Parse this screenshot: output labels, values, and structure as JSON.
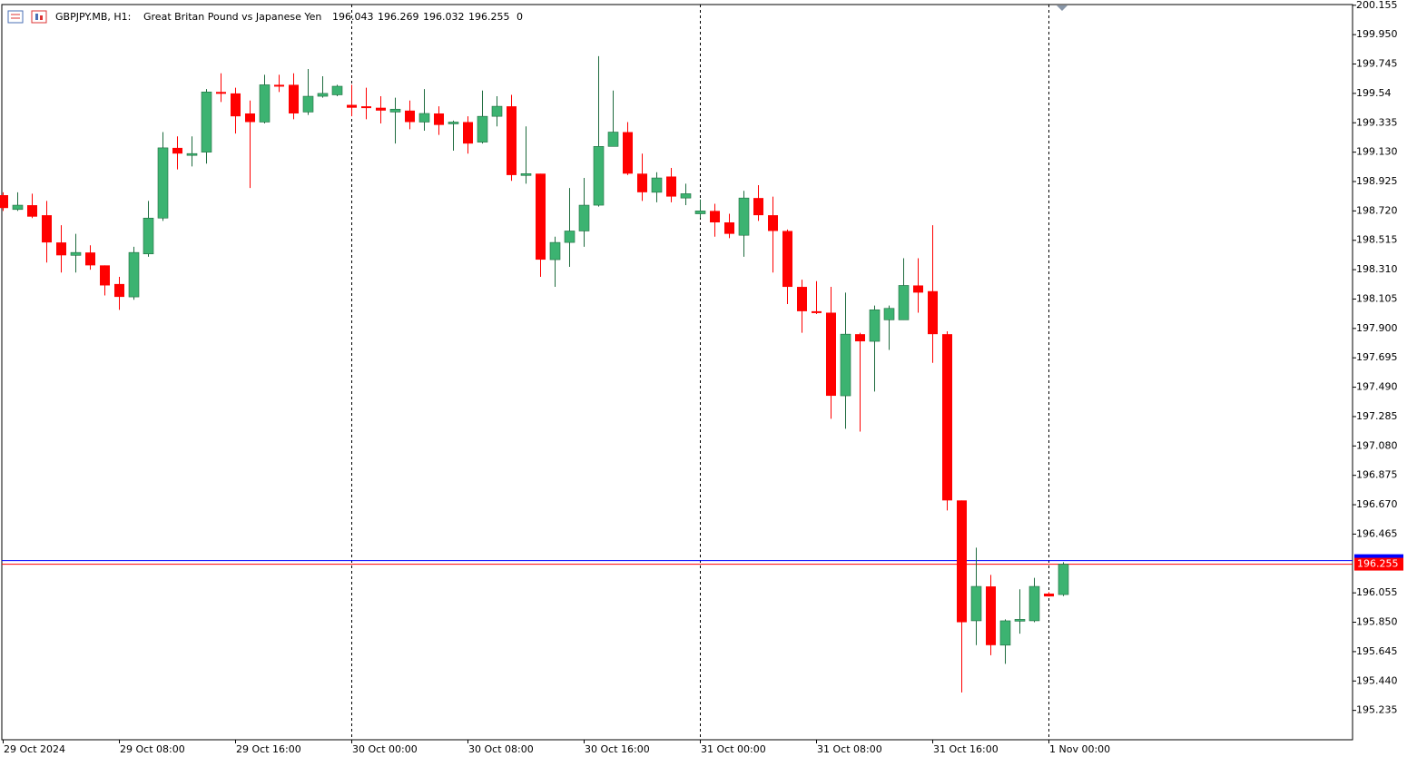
{
  "chart_data": {
    "type": "candlestick",
    "title": "GBPJPY.MB, H1:",
    "subtitle": "Great Britan Pound vs Japanese Yen",
    "header_value": 0,
    "categories": [
      "29 Oct 2024",
      null,
      null,
      null,
      null,
      null,
      null,
      null,
      "29 Oct 08:00",
      null,
      null,
      null,
      null,
      null,
      null,
      null,
      "29 Oct 16:00",
      null,
      null,
      null,
      null,
      null,
      null,
      null,
      "30 Oct 00:00",
      null,
      null,
      null,
      null,
      null,
      null,
      null,
      "30 Oct 08:00",
      null,
      null,
      null,
      null,
      null,
      null,
      null,
      "30 Oct 16:00",
      null,
      null,
      null,
      null,
      null,
      null,
      null,
      "31 Oct 00:00",
      null,
      null,
      null,
      null,
      null,
      null,
      null,
      "31 Oct 08:00",
      null,
      null,
      null,
      null,
      null,
      null,
      null,
      "31 Oct 16:00",
      null,
      null,
      null,
      null,
      null,
      null,
      null,
      "1 Nov 00:00",
      null
    ],
    "open": [
      198.83,
      198.73,
      198.76,
      198.69,
      198.5,
      198.41,
      198.43,
      198.34,
      198.21,
      198.12,
      198.42,
      198.67,
      199.16,
      199.11,
      199.13,
      199.55,
      199.54,
      199.4,
      199.34,
      199.6,
      199.6,
      199.41,
      199.52,
      199.53,
      199.46,
      199.45,
      199.44,
      199.41,
      199.42,
      199.34,
      199.4,
      199.33,
      199.34,
      199.2,
      199.38,
      199.45,
      198.97,
      198.98,
      198.38,
      198.5,
      198.58,
      198.76,
      199.17,
      199.27,
      198.98,
      198.85,
      198.96,
      198.81,
      198.7,
      198.72,
      198.64,
      198.55,
      198.81,
      198.69,
      198.58,
      198.19,
      198.02,
      198.01,
      197.43,
      197.86,
      197.81,
      197.96,
      197.96,
      198.2,
      198.16,
      197.86,
      196.7,
      195.86,
      196.1,
      195.69,
      195.86,
      195.86,
      196.05,
      196.043
    ],
    "high": [
      198.85,
      198.85,
      198.84,
      198.79,
      198.62,
      198.56,
      198.48,
      198.34,
      198.26,
      198.47,
      198.79,
      199.27,
      199.24,
      199.24,
      199.57,
      199.68,
      199.58,
      199.49,
      199.67,
      199.67,
      199.68,
      199.71,
      199.66,
      199.6,
      199.6,
      199.58,
      199.52,
      199.51,
      199.49,
      199.57,
      199.45,
      199.35,
      199.38,
      199.56,
      199.52,
      199.53,
      199.31,
      198.98,
      198.54,
      198.88,
      198.95,
      199.8,
      199.56,
      199.34,
      199.12,
      198.99,
      199.02,
      198.91,
      198.8,
      198.77,
      198.7,
      198.86,
      198.9,
      198.82,
      198.59,
      198.24,
      198.23,
      198.19,
      198.15,
      197.87,
      198.06,
      198.06,
      198.39,
      198.39,
      198.62,
      197.88,
      196.7,
      196.37,
      196.18,
      195.87,
      196.08,
      196.16,
      196.06,
      196.269
    ],
    "low": [
      198.72,
      198.72,
      198.67,
      198.36,
      198.29,
      198.29,
      198.31,
      198.13,
      198.03,
      198.1,
      198.4,
      198.65,
      199.01,
      199.03,
      199.05,
      199.48,
      199.26,
      198.88,
      199.33,
      199.55,
      199.36,
      199.39,
      199.51,
      199.52,
      199.38,
      199.36,
      199.33,
      199.19,
      199.29,
      199.28,
      199.25,
      199.14,
      199.12,
      199.19,
      199.31,
      198.93,
      198.91,
      198.26,
      198.19,
      198.33,
      198.47,
      198.75,
      199.17,
      198.97,
      198.79,
      198.78,
      198.78,
      198.76,
      198.67,
      198.54,
      198.53,
      198.4,
      198.65,
      198.29,
      198.07,
      197.87,
      198.0,
      197.27,
      197.2,
      197.18,
      197.46,
      197.75,
      197.96,
      198.01,
      197.66,
      196.63,
      195.36,
      195.69,
      195.62,
      195.56,
      195.77,
      195.85,
      196.03,
      196.032
    ],
    "close": [
      198.74,
      198.76,
      198.68,
      198.5,
      198.41,
      198.43,
      198.34,
      198.2,
      198.12,
      198.43,
      198.67,
      199.16,
      199.12,
      199.12,
      199.55,
      199.54,
      199.38,
      199.34,
      199.6,
      199.59,
      199.4,
      199.52,
      199.54,
      199.59,
      199.44,
      199.44,
      199.42,
      199.43,
      199.34,
      199.4,
      199.32,
      199.34,
      199.19,
      199.38,
      199.45,
      198.97,
      198.98,
      198.38,
      198.5,
      198.58,
      198.76,
      199.17,
      199.27,
      198.98,
      198.85,
      198.95,
      198.82,
      198.84,
      198.72,
      198.64,
      198.56,
      198.81,
      198.69,
      198.58,
      198.19,
      198.02,
      198.01,
      197.43,
      197.86,
      197.81,
      198.03,
      198.04,
      198.2,
      198.15,
      197.86,
      196.7,
      195.85,
      196.1,
      195.69,
      195.86,
      195.87,
      196.1,
      196.03,
      196.255
    ],
    "up_color": "#3cb371",
    "down_color": "#ff0000",
    "ylim": [
      195.03,
      200.16
    ],
    "yticks": [
      200.155,
      {
        "value": 199.95,
        "label": "199.950"
      },
      199.745,
      199.54,
      199.335,
      {
        "value": 199.13,
        "label": "199.130"
      },
      198.925,
      {
        "value": 198.72,
        "label": "198.720"
      },
      198.515,
      {
        "value": 198.31,
        "label": "198.310"
      },
      198.105,
      {
        "value": 197.9,
        "label": "197.900"
      },
      197.695,
      {
        "value": 197.49,
        "label": "197.490"
      },
      197.285,
      {
        "value": 197.08,
        "label": "197.080"
      },
      196.875,
      {
        "value": 196.67,
        "label": "196.670"
      },
      196.465,
      196.055,
      {
        "value": 195.85,
        "label": "195.850"
      },
      195.645,
      {
        "value": 195.44,
        "label": "195.440"
      },
      195.235
    ],
    "bid_line": 196.255,
    "ask_line": 196.28,
    "bid_color": "#ff0000",
    "ask_color": "#0000ff"
  }
}
